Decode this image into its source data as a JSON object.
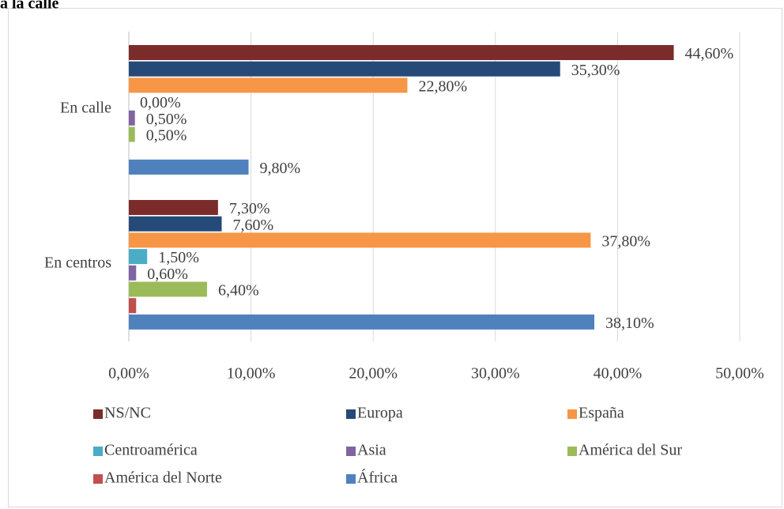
{
  "chart_data": {
    "type": "hbar",
    "title": "a la calle",
    "categories": [
      "En calle",
      "En centros"
    ],
    "series": [
      {
        "name": "NS/NC",
        "color": "#7b2c2a",
        "values": [
          44.6,
          7.3
        ],
        "value_labels": [
          "44,60%",
          "7,30%"
        ]
      },
      {
        "name": "Europa",
        "color": "#264a78",
        "values": [
          35.3,
          7.6
        ],
        "value_labels": [
          "35,30%",
          "7,60%"
        ]
      },
      {
        "name": "España",
        "color": "#f79646",
        "values": [
          22.8,
          37.8
        ],
        "value_labels": [
          "22,80%",
          "37,80%"
        ]
      },
      {
        "name": "Centroamérica",
        "color": "#4bacc6",
        "values": [
          0,
          1.5
        ],
        "value_labels": [
          "0,00%",
          "1,50%"
        ]
      },
      {
        "name": "Asia",
        "color": "#8064a2",
        "values": [
          0.5,
          0.6
        ],
        "value_labels": [
          "0,50%",
          "0,60%"
        ]
      },
      {
        "name": "América del Sur",
        "color": "#9bbb59",
        "values": [
          0.5,
          6.4
        ],
        "value_labels": [
          "0,50%",
          "6,40%"
        ]
      },
      {
        "name": "América del Norte",
        "color": "#c0504d",
        "values": [
          null,
          0.6
        ],
        "value_labels": [
          null,
          null
        ]
      },
      {
        "name": "África",
        "color": "#4f81bd",
        "values": [
          9.8,
          38.1
        ],
        "value_labels": [
          "9,80%",
          "38,10%"
        ]
      }
    ],
    "xlim": [
      0,
      50
    ],
    "xticks": [
      {
        "value": 0,
        "label": "0,00%"
      },
      {
        "value": 10,
        "label": "10,00%"
      },
      {
        "value": 20,
        "label": "20,00%"
      },
      {
        "value": 30,
        "label": "30,00%"
      },
      {
        "value": 40,
        "label": "40,00%"
      },
      {
        "value": 50,
        "label": "50,00%"
      }
    ],
    "grid": true,
    "legend": "bottom"
  }
}
